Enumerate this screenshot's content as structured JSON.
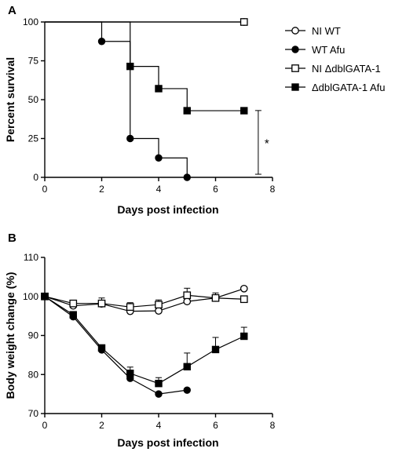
{
  "chart_data": [
    {
      "panel_label": "A",
      "type": "line",
      "subtype": "kaplan-meier step",
      "xlabel": "Days post infection",
      "ylabel": "Percent survival",
      "xlim": [
        0,
        8
      ],
      "ylim": [
        0,
        100
      ],
      "x_ticks": [
        0,
        2,
        4,
        6,
        8
      ],
      "y_ticks": [
        0,
        25,
        50,
        75,
        100
      ],
      "legend_position": "right",
      "series": [
        {
          "name": "NI WT",
          "marker": "open-circle",
          "steps": [
            [
              0,
              100
            ],
            [
              7,
              100
            ]
          ],
          "points": [
            [
              7,
              100
            ]
          ]
        },
        {
          "name": "WT Afu",
          "marker": "filled-circle",
          "steps": [
            [
              0,
              100
            ],
            [
              2,
              87.5
            ],
            [
              3,
              25
            ],
            [
              4,
              12.5
            ],
            [
              5,
              0
            ]
          ],
          "points": [
            [
              2,
              87.5
            ],
            [
              3,
              25
            ],
            [
              4,
              12.5
            ],
            [
              5,
              0
            ]
          ]
        },
        {
          "name": "NI ΔdblGATA-1",
          "marker": "open-square",
          "steps": [
            [
              0,
              100
            ],
            [
              7,
              100
            ]
          ],
          "points": [
            [
              7,
              100
            ]
          ]
        },
        {
          "name": "ΔdblGATA-1 Afu",
          "marker": "filled-square",
          "steps": [
            [
              0,
              100
            ],
            [
              3,
              71.4
            ],
            [
              4,
              57.1
            ],
            [
              5,
              42.9
            ],
            [
              7,
              42.9
            ]
          ],
          "points": [
            [
              3,
              71.4
            ],
            [
              4,
              57.1
            ],
            [
              5,
              42.9
            ],
            [
              7,
              42.9
            ]
          ]
        }
      ],
      "significance": {
        "label": "*",
        "x": 7.5,
        "y_range": [
          2,
          43
        ]
      }
    },
    {
      "panel_label": "B",
      "type": "line",
      "xlabel": "Days post infection",
      "ylabel": "Body weight change (%)",
      "xlim": [
        0,
        8
      ],
      "ylim": [
        70,
        110
      ],
      "x_ticks": [
        0,
        2,
        4,
        6,
        8
      ],
      "y_ticks": [
        70,
        80,
        90,
        100,
        110
      ],
      "series": [
        {
          "name": "NI WT",
          "marker": "open-circle",
          "x": [
            0,
            1,
            2,
            3,
            4,
            5,
            6,
            7
          ],
          "y": [
            100,
            97.6,
            98.1,
            96.2,
            96.3,
            98.7,
            99.6,
            102.0
          ],
          "err": [
            0,
            0.6,
            0.8,
            0.6,
            0.6,
            0.8,
            0.8,
            0.5
          ]
        },
        {
          "name": "WT Afu",
          "marker": "filled-circle",
          "x": [
            0,
            1,
            2,
            3,
            4,
            5
          ],
          "y": [
            100,
            94.8,
            86.3,
            79.0,
            75.0,
            76.0
          ],
          "err": [
            0,
            0.5,
            0.6,
            0.6,
            0.4,
            0.4
          ]
        },
        {
          "name": "NI ΔdblGATA-1",
          "marker": "open-square",
          "x": [
            0,
            1,
            2,
            3,
            4,
            5,
            6,
            7
          ],
          "y": [
            100,
            98.2,
            98.2,
            97.3,
            97.9,
            100.3,
            99.6,
            99.3
          ],
          "err": [
            0,
            0.8,
            1.4,
            1.1,
            1.2,
            1.8,
            1.3,
            0.8
          ]
        },
        {
          "name": "ΔdblGATA-1 Afu",
          "marker": "filled-square",
          "x": [
            0,
            1,
            2,
            3,
            4,
            5,
            6,
            7
          ],
          "y": [
            100,
            95.3,
            86.8,
            80.3,
            77.7,
            82.0,
            86.4,
            89.8
          ],
          "err": [
            0,
            0.5,
            0.8,
            1.6,
            1.5,
            3.5,
            3.1,
            2.3
          ]
        }
      ]
    }
  ]
}
